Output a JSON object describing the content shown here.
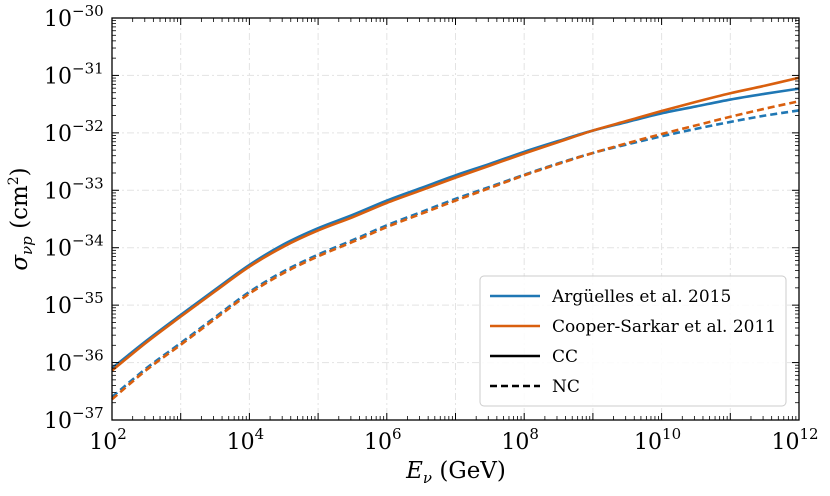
{
  "chart_data": {
    "type": "line",
    "title": "",
    "xlabel": "E_ν (GeV)",
    "xlabel_parts": {
      "symbol": "E",
      "sub": "ν",
      "unit": " (GeV)"
    },
    "ylabel": "σ_νp (cm²)",
    "ylabel_parts": {
      "symbol": "σ",
      "sub": "νp",
      "unit_open": " (cm",
      "unit_sup": "2",
      "unit_close": ")"
    },
    "x_scale": "log",
    "y_scale": "log",
    "xlim_exp": [
      2,
      12
    ],
    "ylim_exp": [
      -37,
      -30
    ],
    "x_ticks": [
      {
        "base": "10",
        "exp": "2",
        "value_exp": 2
      },
      {
        "base": "10",
        "exp": "4",
        "value_exp": 4
      },
      {
        "base": "10",
        "exp": "6",
        "value_exp": 6
      },
      {
        "base": "10",
        "exp": "8",
        "value_exp": 8
      },
      {
        "base": "10",
        "exp": "10",
        "value_exp": 10
      },
      {
        "base": "10",
        "exp": "12",
        "value_exp": 12
      }
    ],
    "y_ticks": [
      {
        "base": "10",
        "exp": "−30",
        "value_exp": -30
      },
      {
        "base": "10",
        "exp": "−31",
        "value_exp": -31
      },
      {
        "base": "10",
        "exp": "−32",
        "value_exp": -32
      },
      {
        "base": "10",
        "exp": "−33",
        "value_exp": -33
      },
      {
        "base": "10",
        "exp": "−34",
        "value_exp": -34
      },
      {
        "base": "10",
        "exp": "−35",
        "value_exp": -35
      },
      {
        "base": "10",
        "exp": "−36",
        "value_exp": -36
      },
      {
        "base": "10",
        "exp": "−37",
        "value_exp": -37
      }
    ],
    "grid": true,
    "legend_position": "bottom-right",
    "legend": [
      {
        "label": "Argüelles et al. 2015",
        "color": "#1f77b4",
        "style": "solid"
      },
      {
        "label": "Cooper-Sarkar et al. 2011",
        "color": "#d95f0e",
        "style": "solid"
      },
      {
        "label": "CC",
        "color": "#000000",
        "style": "solid"
      },
      {
        "label": "NC",
        "color": "#000000",
        "style": "dashed"
      }
    ],
    "series_note": "x and y values are log10(E_ν / GeV) and log10(σ / cm²)",
    "series": [
      {
        "name": "Argüelles et al. 2015 CC",
        "color": "#1f77b4",
        "style": "solid",
        "x": [
          2,
          2.5,
          3,
          3.5,
          4,
          4.5,
          5,
          5.5,
          6,
          6.5,
          7,
          7.5,
          8,
          8.5,
          9,
          9.5,
          10,
          10.5,
          11,
          11.5,
          12
        ],
        "y": [
          -36.1,
          -35.62,
          -35.17,
          -34.73,
          -34.3,
          -33.94,
          -33.66,
          -33.43,
          -33.18,
          -32.96,
          -32.74,
          -32.54,
          -32.33,
          -32.14,
          -31.96,
          -31.81,
          -31.66,
          -31.54,
          -31.42,
          -31.32,
          -31.23
        ]
      },
      {
        "name": "Cooper-Sarkar et al. 2011 CC",
        "color": "#d95f0e",
        "style": "solid",
        "x": [
          2,
          2.5,
          3,
          3.5,
          4,
          4.5,
          5,
          5.5,
          6,
          6.5,
          7,
          7.5,
          8,
          8.5,
          9,
          9.5,
          10,
          10.5,
          11,
          11.5,
          12
        ],
        "y": [
          -36.14,
          -35.65,
          -35.2,
          -34.76,
          -34.33,
          -33.98,
          -33.7,
          -33.47,
          -33.22,
          -33.0,
          -32.78,
          -32.57,
          -32.36,
          -32.16,
          -31.96,
          -31.79,
          -31.62,
          -31.46,
          -31.31,
          -31.18,
          -31.04
        ]
      },
      {
        "name": "Argüelles et al. 2015 NC",
        "color": "#1f77b4",
        "style": "dashed",
        "x": [
          2,
          2.5,
          3,
          3.5,
          4,
          4.5,
          5,
          5.5,
          6,
          6.5,
          7,
          7.5,
          8,
          8.5,
          9,
          9.5,
          10,
          10.5,
          11,
          11.5,
          12
        ],
        "y": [
          -36.6,
          -36.1,
          -35.66,
          -35.21,
          -34.77,
          -34.41,
          -34.12,
          -33.87,
          -33.61,
          -33.38,
          -33.15,
          -32.94,
          -32.73,
          -32.53,
          -32.35,
          -32.2,
          -32.06,
          -31.93,
          -31.81,
          -31.7,
          -31.61
        ]
      },
      {
        "name": "Cooper-Sarkar et al. 2011 NC",
        "color": "#d95f0e",
        "style": "dashed",
        "x": [
          2,
          2.5,
          3,
          3.5,
          4,
          4.5,
          5,
          5.5,
          6,
          6.5,
          7,
          7.5,
          8,
          8.5,
          9,
          9.5,
          10,
          10.5,
          11,
          11.5,
          12
        ],
        "y": [
          -36.64,
          -36.13,
          -35.69,
          -35.24,
          -34.8,
          -34.44,
          -34.15,
          -33.9,
          -33.64,
          -33.41,
          -33.18,
          -32.96,
          -32.74,
          -32.54,
          -32.35,
          -32.18,
          -32.02,
          -31.87,
          -31.72,
          -31.58,
          -31.45
        ]
      }
    ]
  }
}
